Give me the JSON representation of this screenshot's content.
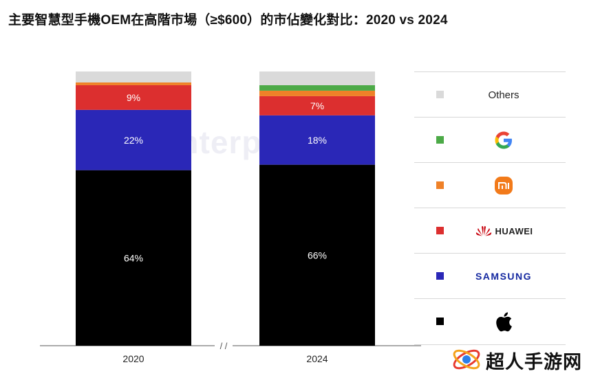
{
  "title": "主要智慧型手機OEM在高階市場（≥$600）的市佔變化對比：2020 vs 2024",
  "background_watermark": "Counterpoint",
  "chart_data": {
    "type": "bar",
    "stacked": true,
    "normalized": true,
    "categories": [
      "2020",
      "2024"
    ],
    "axis_break_label": "/ /",
    "series": [
      {
        "name": "Apple",
        "color": "#000000",
        "values": [
          64,
          66
        ],
        "labels": [
          "64%",
          "66%"
        ]
      },
      {
        "name": "Samsung",
        "color": "#2a27b7",
        "values": [
          22,
          18
        ],
        "labels": [
          "22%",
          "18%"
        ]
      },
      {
        "name": "Huawei",
        "color": "#dc2f2f",
        "values": [
          9,
          7
        ],
        "labels": [
          "9%",
          "7%"
        ]
      },
      {
        "name": "Xiaomi",
        "color": "#ef8128",
        "values": [
          1,
          2
        ],
        "labels": [
          "",
          ""
        ]
      },
      {
        "name": "Google",
        "color": "#4caa47",
        "values": [
          0,
          2
        ],
        "labels": [
          "",
          ""
        ]
      },
      {
        "name": "Others",
        "color": "#dadada",
        "values": [
          4,
          5
        ],
        "labels": [
          "",
          ""
        ]
      }
    ],
    "ylim": [
      0,
      100
    ],
    "grid": false,
    "legend_position": "right"
  },
  "legend": [
    {
      "key": "others",
      "text": "Others",
      "color": "#dadada",
      "icon": "text"
    },
    {
      "key": "google",
      "text": "",
      "color": "#4caa47",
      "icon": "google-logo-icon"
    },
    {
      "key": "xiaomi",
      "text": "",
      "color": "#ef8128",
      "icon": "xiaomi-logo-icon"
    },
    {
      "key": "huawei",
      "text": "HUAWEI",
      "color": "#dc2f2f",
      "icon": "huawei-logo-icon"
    },
    {
      "key": "samsung",
      "text": "SAMSUNG",
      "color": "#2a27b7",
      "icon": "samsung-logo-icon"
    },
    {
      "key": "apple",
      "text": "",
      "color": "#000000",
      "icon": "apple-logo-icon"
    }
  ],
  "watermark": {
    "text": "超人手游网",
    "icon": "logo-icon"
  }
}
